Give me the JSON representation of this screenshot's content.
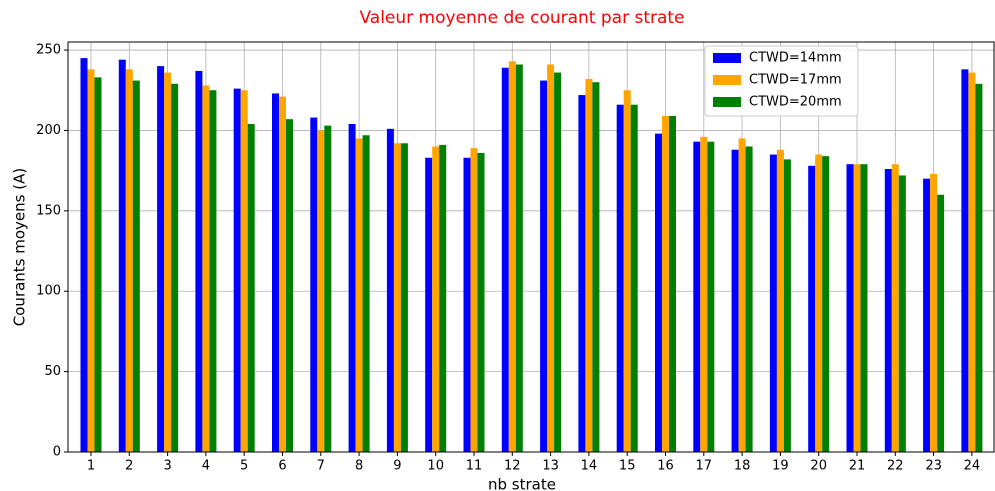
{
  "chart_data": {
    "type": "bar",
    "title": "Valeur moyenne de courant par strate",
    "x_label": "nb strate",
    "y_label": "Courants moyens (A)",
    "categories": [
      "1",
      "2",
      "3",
      "4",
      "5",
      "6",
      "7",
      "8",
      "9",
      "10",
      "11",
      "12",
      "13",
      "14",
      "15",
      "16",
      "17",
      "18",
      "19",
      "20",
      "21",
      "22",
      "23",
      "24"
    ],
    "series": [
      {
        "name": "CTWD=14mm",
        "color": "#0000ff",
        "values": [
          245,
          244,
          240,
          237,
          226,
          223,
          208,
          204,
          201,
          183,
          183,
          239,
          231,
          222,
          216,
          198,
          193,
          188,
          185,
          178,
          179,
          176,
          170,
          238
        ]
      },
      {
        "name": "CTWD=17mm",
        "color": "#ffa500",
        "values": [
          238,
          238,
          236,
          228,
          225,
          221,
          200,
          195,
          192,
          190,
          189,
          243,
          241,
          232,
          225,
          209,
          196,
          195,
          188,
          185,
          179,
          179,
          173,
          236
        ]
      },
      {
        "name": "CTWD=20mm",
        "color": "#008000",
        "values": [
          233,
          231,
          229,
          225,
          204,
          207,
          203,
          197,
          192,
          191,
          186,
          241,
          236,
          230,
          216,
          209,
          193,
          190,
          182,
          184,
          179,
          172,
          160,
          229
        ]
      }
    ],
    "ylim": [
      0,
      255
    ],
    "yticks": [
      0,
      50,
      100,
      150,
      200,
      250
    ],
    "grid": true,
    "legend": "upper right"
  }
}
